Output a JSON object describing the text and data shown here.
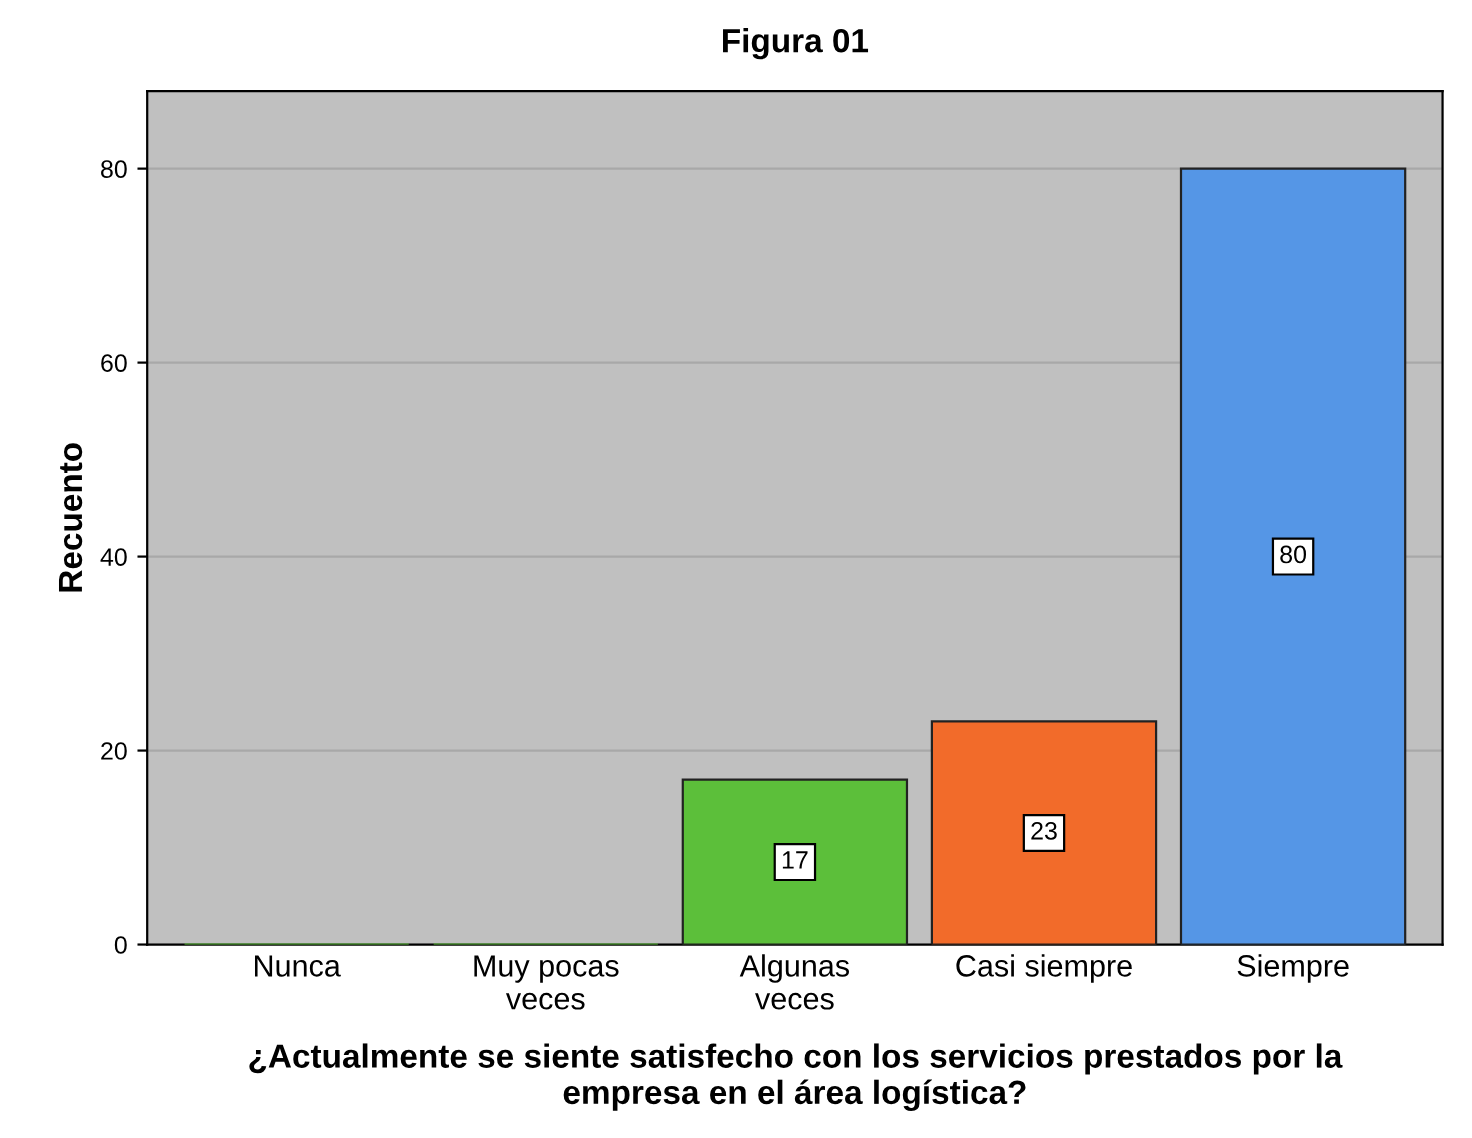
{
  "chart_data": {
    "type": "bar",
    "title": "Figura 01",
    "xlabel": "¿Actualmente se siente satisfecho con los servicios prestados por la\nempresa en el área logística?",
    "ylabel": "Recuento",
    "categories": [
      "Nunca",
      "Muy pocas\nveces",
      "Algunas\nveces",
      "Casi siempre",
      "Siempre"
    ],
    "values": [
      0,
      0,
      17,
      23,
      80
    ],
    "colors": [
      "#5cbf3a",
      "#5cbf3a",
      "#5cbf3a",
      "#f26b2a",
      "#5596e6"
    ],
    "value_labels": [
      null,
      null,
      "17",
      "23",
      "80"
    ],
    "ylim": [
      0,
      88
    ],
    "yticks": [
      0,
      20,
      40,
      60,
      80
    ],
    "grid": "y"
  }
}
